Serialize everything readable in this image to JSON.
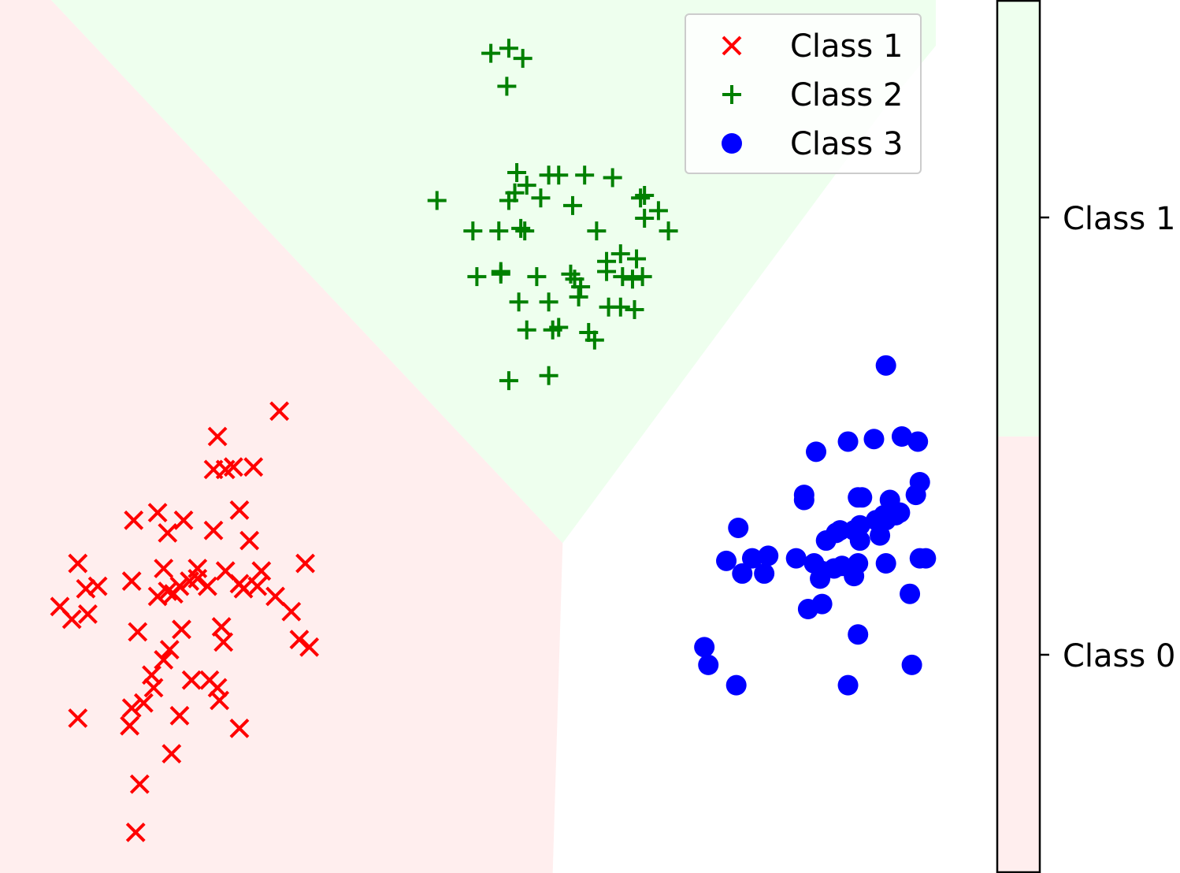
{
  "chart_data": {
    "type": "scatter",
    "title": "",
    "xlabel": "",
    "ylabel": "",
    "grid": false,
    "axes_visible": false,
    "legend_position": "top-right",
    "series": [
      {
        "name": "Class 1",
        "marker": "x",
        "color": "#ff0000",
        "points": [
          [
            -2.73,
            1.72
          ],
          [
            -2.42,
            1.82
          ],
          [
            -2.65,
            1.6
          ],
          [
            -2.69,
            1.59
          ],
          [
            -2.75,
            1.59
          ],
          [
            -2.55,
            1.6
          ],
          [
            -3.15,
            1.39
          ],
          [
            -3.03,
            1.42
          ],
          [
            -2.98,
            1.34
          ],
          [
            -2.9,
            1.39
          ],
          [
            -2.75,
            1.35
          ],
          [
            -2.62,
            1.43
          ],
          [
            -2.57,
            1.31
          ],
          [
            -3.43,
            1.22
          ],
          [
            -3.39,
            1.12
          ],
          [
            -3.33,
            1.13
          ],
          [
            -3.16,
            1.15
          ],
          [
            -3.0,
            1.2
          ],
          [
            -2.83,
            1.2
          ],
          [
            -2.69,
            1.19
          ],
          [
            -2.51,
            1.19
          ],
          [
            -2.44,
            1.09
          ],
          [
            -2.29,
            1.22
          ],
          [
            -3.52,
            1.05
          ],
          [
            -3.46,
            1.0
          ],
          [
            -3.38,
            1.02
          ],
          [
            -3.03,
            1.09
          ],
          [
            -2.98,
            1.11
          ],
          [
            -2.95,
            1.1
          ],
          [
            -2.92,
            1.13
          ],
          [
            -2.87,
            1.15
          ],
          [
            -2.83,
            1.16
          ],
          [
            -2.78,
            1.13
          ],
          [
            -2.62,
            1.14
          ],
          [
            -2.6,
            1.12
          ],
          [
            -2.53,
            1.13
          ],
          [
            -2.71,
            0.97
          ],
          [
            -2.36,
            1.03
          ],
          [
            -2.27,
            0.89
          ],
          [
            -2.32,
            0.92
          ],
          [
            -2.7,
            0.91
          ],
          [
            -2.97,
            0.88
          ],
          [
            -2.91,
            0.96
          ],
          [
            -3.0,
            0.84
          ],
          [
            -3.13,
            0.95
          ],
          [
            -3.06,
            0.78
          ],
          [
            -2.86,
            0.76
          ],
          [
            -2.72,
            0.68
          ],
          [
            -2.73,
            0.73
          ],
          [
            -3.05,
            0.73
          ],
          [
            -3.1,
            0.67
          ],
          [
            -3.16,
            0.65
          ],
          [
            -2.92,
            0.62
          ],
          [
            -3.43,
            0.61
          ],
          [
            -3.17,
            0.58
          ],
          [
            -2.62,
            0.57
          ],
          [
            -2.96,
            0.47
          ],
          [
            -3.12,
            0.35
          ],
          [
            -3.14,
            0.16
          ],
          [
            -2.77,
            0.76
          ]
        ]
      },
      {
        "name": "Class 2",
        "marker": "+",
        "color": "#008000",
        "points": [
          [
            -1.36,
            3.23
          ],
          [
            -1.27,
            3.25
          ],
          [
            -1.2,
            3.21
          ],
          [
            -1.28,
            3.1
          ],
          [
            -1.23,
            2.76
          ],
          [
            -1.18,
            2.71
          ],
          [
            -1.07,
            2.75
          ],
          [
            -1.02,
            2.75
          ],
          [
            -0.89,
            2.75
          ],
          [
            -0.75,
            2.74
          ],
          [
            -0.61,
            2.66
          ],
          [
            -0.59,
            2.67
          ],
          [
            -1.24,
            2.68
          ],
          [
            -1.27,
            2.65
          ],
          [
            -1.11,
            2.66
          ],
          [
            -1.63,
            2.65
          ],
          [
            -0.95,
            2.63
          ],
          [
            -0.52,
            2.61
          ],
          [
            -0.59,
            2.58
          ],
          [
            -1.45,
            2.53
          ],
          [
            -1.32,
            2.53
          ],
          [
            -1.21,
            2.54
          ],
          [
            -1.19,
            2.53
          ],
          [
            -0.83,
            2.53
          ],
          [
            -0.47,
            2.53
          ],
          [
            -0.71,
            2.44
          ],
          [
            -0.78,
            2.41
          ],
          [
            -0.63,
            2.42
          ],
          [
            -0.78,
            2.37
          ],
          [
            -1.31,
            2.37
          ],
          [
            -1.31,
            2.36
          ],
          [
            -1.13,
            2.35
          ],
          [
            -0.96,
            2.36
          ],
          [
            -0.94,
            2.34
          ],
          [
            -0.7,
            2.35
          ],
          [
            -0.6,
            2.35
          ],
          [
            -0.65,
            2.34
          ],
          [
            -1.43,
            2.35
          ],
          [
            -0.91,
            2.31
          ],
          [
            -1.22,
            2.25
          ],
          [
            -1.07,
            2.25
          ],
          [
            -0.92,
            2.27
          ],
          [
            -0.77,
            2.23
          ],
          [
            -0.71,
            2.23
          ],
          [
            -0.64,
            2.22
          ],
          [
            -1.18,
            2.14
          ],
          [
            -1.05,
            2.14
          ],
          [
            -1.02,
            2.15
          ],
          [
            -0.87,
            2.13
          ],
          [
            -0.84,
            2.1
          ],
          [
            -1.27,
            1.94
          ],
          [
            -1.07,
            1.96
          ]
        ]
      },
      {
        "name": "Class 3",
        "marker": "o",
        "color": "#0000ff",
        "points": [
          [
            0.62,
            2.0
          ],
          [
            0.43,
            1.7
          ],
          [
            0.56,
            1.71
          ],
          [
            0.7,
            1.72
          ],
          [
            0.78,
            1.7
          ],
          [
            0.27,
            1.66
          ],
          [
            0.21,
            1.49
          ],
          [
            0.21,
            1.47
          ],
          [
            0.48,
            1.48
          ],
          [
            0.5,
            1.48
          ],
          [
            0.64,
            1.47
          ],
          [
            0.77,
            1.49
          ],
          [
            0.79,
            1.54
          ],
          [
            0.69,
            1.42
          ],
          [
            0.67,
            1.41
          ],
          [
            0.62,
            1.39
          ],
          [
            0.61,
            1.41
          ],
          [
            0.57,
            1.39
          ],
          [
            0.46,
            1.35
          ],
          [
            0.49,
            1.37
          ],
          [
            0.39,
            1.35
          ],
          [
            0.37,
            1.34
          ],
          [
            0.32,
            1.31
          ],
          [
            0.49,
            1.31
          ],
          [
            0.59,
            1.33
          ],
          [
            -0.12,
            1.36
          ],
          [
            -0.18,
            1.23
          ],
          [
            -0.05,
            1.24
          ],
          [
            0.03,
            1.25
          ],
          [
            0.17,
            1.24
          ],
          [
            0.79,
            1.24
          ],
          [
            0.82,
            1.24
          ],
          [
            0.4,
            1.21
          ],
          [
            0.48,
            1.22
          ],
          [
            0.62,
            1.22
          ],
          [
            0.36,
            1.2
          ],
          [
            0.26,
            1.22
          ],
          [
            -0.1,
            1.18
          ],
          [
            0.01,
            1.18
          ],
          [
            0.3,
            1.19
          ],
          [
            0.46,
            1.17
          ],
          [
            0.29,
            1.16
          ],
          [
            0.74,
            1.1
          ],
          [
            0.3,
            1.06
          ],
          [
            0.23,
            1.04
          ],
          [
            0.48,
            0.94
          ],
          [
            -0.29,
            0.89
          ],
          [
            -0.27,
            0.82
          ],
          [
            0.75,
            0.82
          ],
          [
            -0.13,
            0.74
          ],
          [
            0.43,
            0.74
          ]
        ]
      }
    ],
    "decision_regions": {
      "colors": {
        "Class 0": "#ffeeee",
        "Class 1": "#eeffee",
        "Class 2": "#ffffff"
      },
      "boundaries": [
        {
          "from": [
            -3.82,
            3.44
          ],
          "to": [
            -1.0,
            1.3
          ]
        },
        {
          "from": [
            -1.0,
            1.3
          ],
          "to": [
            -1.05,
            0.0
          ]
        },
        {
          "from": [
            -1.0,
            1.3
          ],
          "to": [
            0.6,
            3.0
          ]
        }
      ]
    },
    "colorbar": {
      "tick_labels": [
        "Class 1",
        "Class 0"
      ],
      "segments": [
        {
          "label": "Class 0",
          "color": "#ffeeee"
        },
        {
          "label": "Class 1",
          "color": "#eeffee"
        }
      ]
    }
  }
}
